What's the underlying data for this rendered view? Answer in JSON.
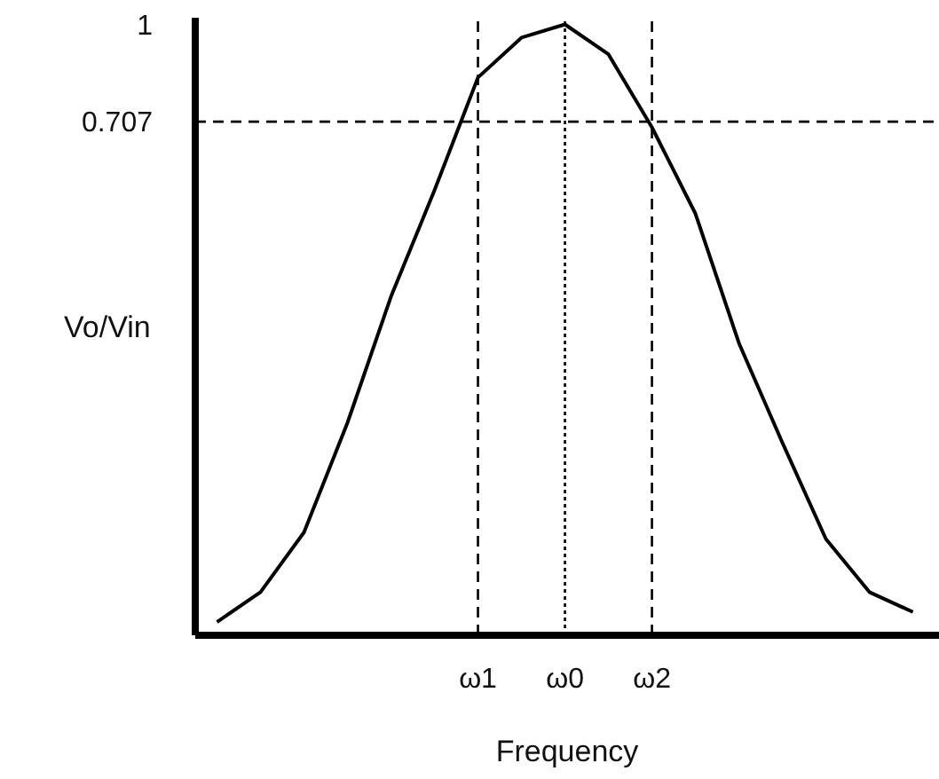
{
  "chart_data": {
    "type": "line",
    "xlabel": "Frequency",
    "ylabel": "Vo/Vin",
    "categories": [
      null,
      null,
      null,
      null,
      null,
      null,
      "ω1",
      null,
      "ω0",
      null,
      "ω2",
      null,
      null,
      null,
      null,
      null,
      null
    ],
    "series": [
      {
        "color": "#000000",
        "values": [
          -0.8,
          -0.71,
          -0.53,
          -0.2,
          0.18,
          0.5,
          0.84,
          0.96,
          1,
          0.91,
          0.69,
          0.43,
          0.04,
          -0.26,
          -0.55,
          -0.71,
          -0.77
        ]
      }
    ],
    "ylim": [
      -0.84,
      1.02
    ],
    "yticks": [
      1,
      0.707
    ],
    "ref_lines": [
      {
        "axis": "y",
        "value": 0.707,
        "line_style": "dashed",
        "color": "#000000"
      },
      {
        "axis": "x",
        "value": "ω1",
        "line_style": "dashed",
        "color": "#000000"
      },
      {
        "axis": "x",
        "value": "ω0",
        "line_style": "dotted",
        "color": "#000000"
      },
      {
        "axis": "x",
        "value": "ω2",
        "line_style": "dashed",
        "color": "#000000"
      }
    ]
  }
}
